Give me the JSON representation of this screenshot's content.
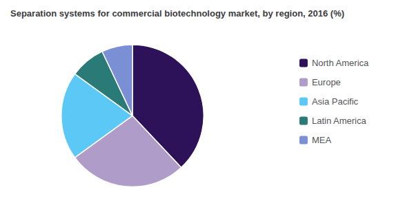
{
  "chart_data": {
    "type": "pie",
    "title": "Separation systems for commercial biotechnology market, by region, 2016 (%)",
    "categories": [
      "North America",
      "Europe",
      "Asia Pacific",
      "Latin America",
      "MEA"
    ],
    "values": [
      38,
      27,
      20,
      8,
      7
    ],
    "colors": [
      "#2e1259",
      "#b09cc8",
      "#5bc8f5",
      "#2a7a78",
      "#7b8fd4"
    ],
    "legend": "right"
  }
}
